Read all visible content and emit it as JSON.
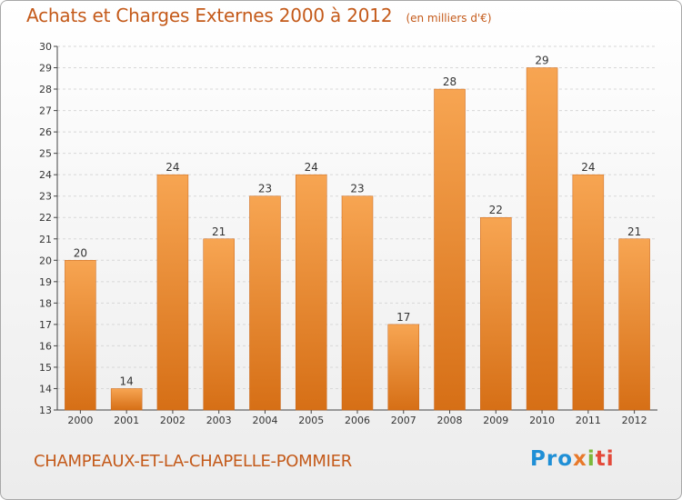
{
  "header": {
    "title": "Achats et Charges Externes 2000 à 2012",
    "subtitle": "(en milliers d'€)"
  },
  "footer": {
    "commune": "CHAMPEAUX-ET-LA-CHAPELLE-POMMIER",
    "logo": "Proxiti"
  },
  "colors": {
    "bar_top": "#f7a552",
    "bar_bottom": "#d66f16",
    "text_accent": "#c45a1a",
    "grid": "#d8d8d8"
  },
  "chart_data": {
    "type": "bar",
    "title": "Achats et Charges Externes 2000 à 2012",
    "subtitle": "(en milliers d'€)",
    "categories": [
      "2000",
      "2001",
      "2002",
      "2003",
      "2004",
      "2005",
      "2006",
      "2007",
      "2008",
      "2009",
      "2010",
      "2011",
      "2012"
    ],
    "values": [
      20,
      14,
      24,
      21,
      23,
      24,
      23,
      17,
      28,
      22,
      29,
      24,
      21
    ],
    "ylim": [
      13,
      30
    ],
    "yticks": [
      13,
      14,
      15,
      16,
      17,
      18,
      19,
      20,
      21,
      22,
      23,
      24,
      25,
      26,
      27,
      28,
      29,
      30
    ],
    "grid": true,
    "data_labels": true,
    "xlabel": "",
    "ylabel": ""
  }
}
